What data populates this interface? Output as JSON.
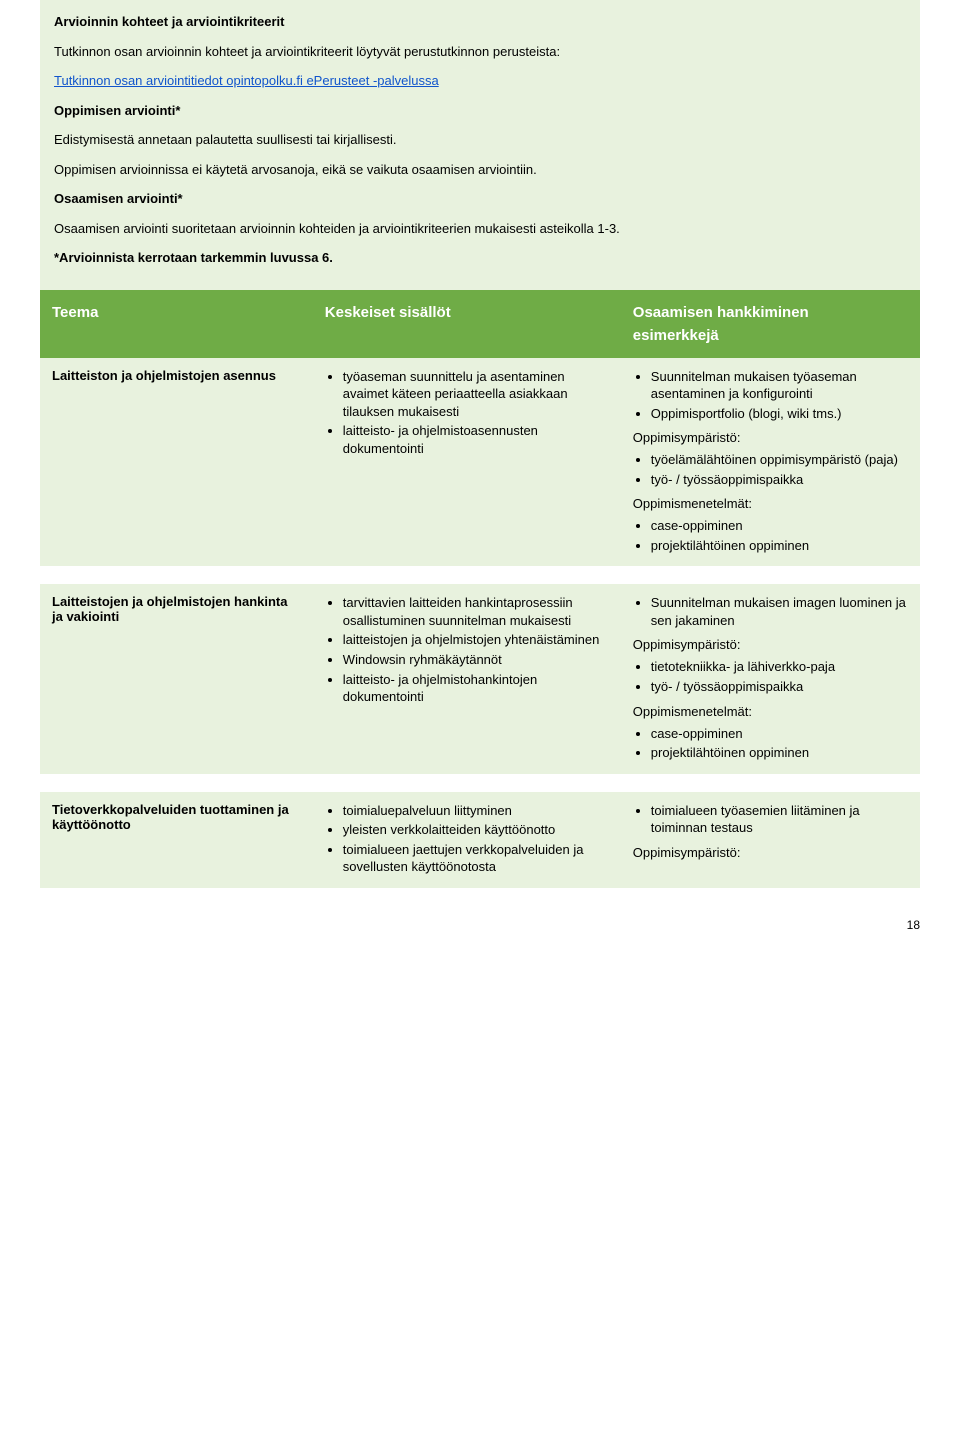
{
  "colors": {
    "lightGreen": "#e8f2de",
    "headerGreen": "#6fac46",
    "text": "#000000",
    "link": "#1155cc"
  },
  "pageNumber": "18",
  "intro": {
    "title": "Arvioinnin kohteet ja arviointikriteerit",
    "p1": "Tutkinnon osan arvioinnin kohteet ja arviointikriteerit löytyvät perustutkinnon perusteista:",
    "link": "Tutkinnon osan arviointitiedot opintopolku.fi ePerusteet -palvelussa",
    "sub1": "Oppimisen arviointi*",
    "p2": "Edistymisestä annetaan palautetta suullisesti tai kirjallisesti.",
    "p3": "Oppimisen arvioinnissa ei käytetä arvosanoja, eikä se vaikuta osaamisen arviointiin.",
    "sub2": "Osaamisen arviointi*",
    "p4": "Osaamisen arviointi suoritetaan arvioinnin kohteiden ja arviointikriteerien mukaisesti asteikolla 1-3.",
    "p5": "*Arvioinnista kerrotaan tarkemmin luvussa 6."
  },
  "header": {
    "c1": "Teema",
    "c2": "Keskeiset sisällöt",
    "c3a": "Osaamisen hankkiminen",
    "c3b": "esimerkkejä"
  },
  "rows": [
    {
      "theme": "Laitteiston ja ohjelmistojen asennus",
      "contents": [
        "työaseman suunnittelu ja asentaminen avaimet käteen periaatteella asiakkaan tilauksen mukaisesti",
        "laitteisto- ja ohjelmistoasennusten dokumentointi"
      ],
      "acq_top": [
        "Suunnitelman mukaisen työaseman asentaminen ja konfigurointi",
        "Oppimisportfolio (blogi, wiki tms.)"
      ],
      "env_label": "Oppimisympäristö:",
      "env": [
        "työelämälähtöinen oppimisympäristö (paja)",
        "työ- / työssäoppimispaikka"
      ],
      "meth_label": "Oppimismenetelmät:",
      "meth": [
        "case-oppiminen",
        "projektilähtöinen oppiminen"
      ]
    },
    {
      "theme": "Laitteistojen ja ohjelmistojen hankinta ja vakiointi",
      "contents": [
        "tarvittavien laitteiden hankintaprosessiin osallistuminen suunnitelman mukaisesti",
        "laitteistojen ja ohjelmistojen yhtenäistäminen",
        "Windowsin ryhmäkäytännöt",
        "laitteisto- ja ohjelmistohankintojen dokumentointi"
      ],
      "acq_top": [
        "Suunnitelman mukaisen imagen luominen ja sen jakaminen"
      ],
      "env_label": "Oppimisympäristö:",
      "env": [
        "tietotekniikka- ja lähiverkko-paja",
        "työ- / työssäoppimispaikka"
      ],
      "meth_label": "Oppimismenetelmät:",
      "meth": [
        "case-oppiminen",
        "projektilähtöinen oppiminen"
      ]
    },
    {
      "theme": "Tietoverkkopalveluiden tuottaminen ja käyttöönotto",
      "contents": [
        "toimialuepalveluun liittyminen",
        "yleisten verkkolaitteiden käyttöönotto",
        "toimialueen jaettujen verkkopalveluiden ja sovellusten käyttöönotosta"
      ],
      "acq_top": [
        "toimialueen työasemien liitäminen ja toiminnan testaus"
      ],
      "env_label": "Oppimisympäristö:",
      "env": [],
      "meth_label": "",
      "meth": []
    }
  ]
}
